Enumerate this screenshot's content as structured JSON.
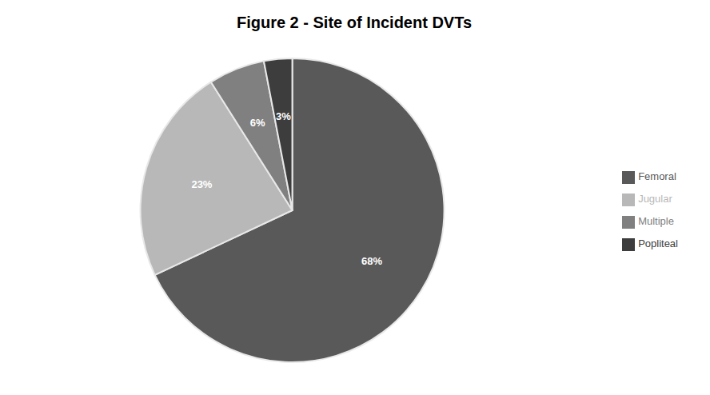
{
  "chart_data": {
    "type": "pie",
    "title": "Figure 2 - Site of Incident DVTs",
    "categories": [
      "Femoral",
      "Jugular",
      "Multiple",
      "Popliteal"
    ],
    "values": [
      68,
      23,
      6,
      3
    ],
    "value_labels": [
      "68%",
      "23%",
      "6%",
      "3%"
    ],
    "colors": [
      "#595959",
      "#b8b8b8",
      "#808080",
      "#3d3d3d"
    ],
    "data_labels": true,
    "legend": "right"
  }
}
